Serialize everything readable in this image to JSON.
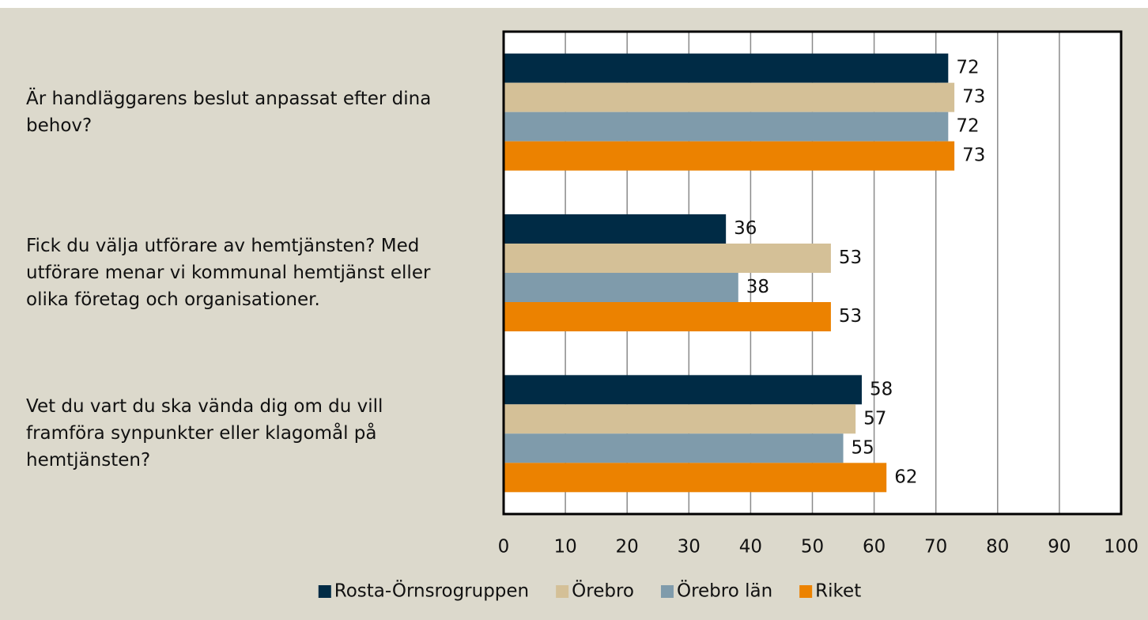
{
  "chart_data": {
    "type": "bar",
    "orientation": "horizontal",
    "categories": [
      "Är handläggarens beslut anpassat efter dina behov?",
      "Fick du välja utförare av hemtjänsten? Med utförare menar vi kommunal hemtjänst eller olika företag och organisationer.",
      "Vet du vart du ska vända dig om du vill framföra synpunkter eller klagomål på hemtjänsten?"
    ],
    "series": [
      {
        "name": "Rosta-Örnsrogruppen",
        "color": "#002b45",
        "values": [
          72,
          36,
          58
        ]
      },
      {
        "name": "Örebro",
        "color": "#d4c097",
        "values": [
          73,
          53,
          57
        ]
      },
      {
        "name": "Örebro län",
        "color": "#7f9bab",
        "values": [
          72,
          38,
          55
        ]
      },
      {
        "name": "Riket",
        "color": "#ec8200",
        "values": [
          73,
          53,
          62
        ]
      }
    ],
    "xlim": [
      0,
      100
    ],
    "xticks": [
      0,
      10,
      20,
      30,
      40,
      50,
      60,
      70,
      80,
      90,
      100
    ],
    "grid": true,
    "legend": "bottom"
  }
}
